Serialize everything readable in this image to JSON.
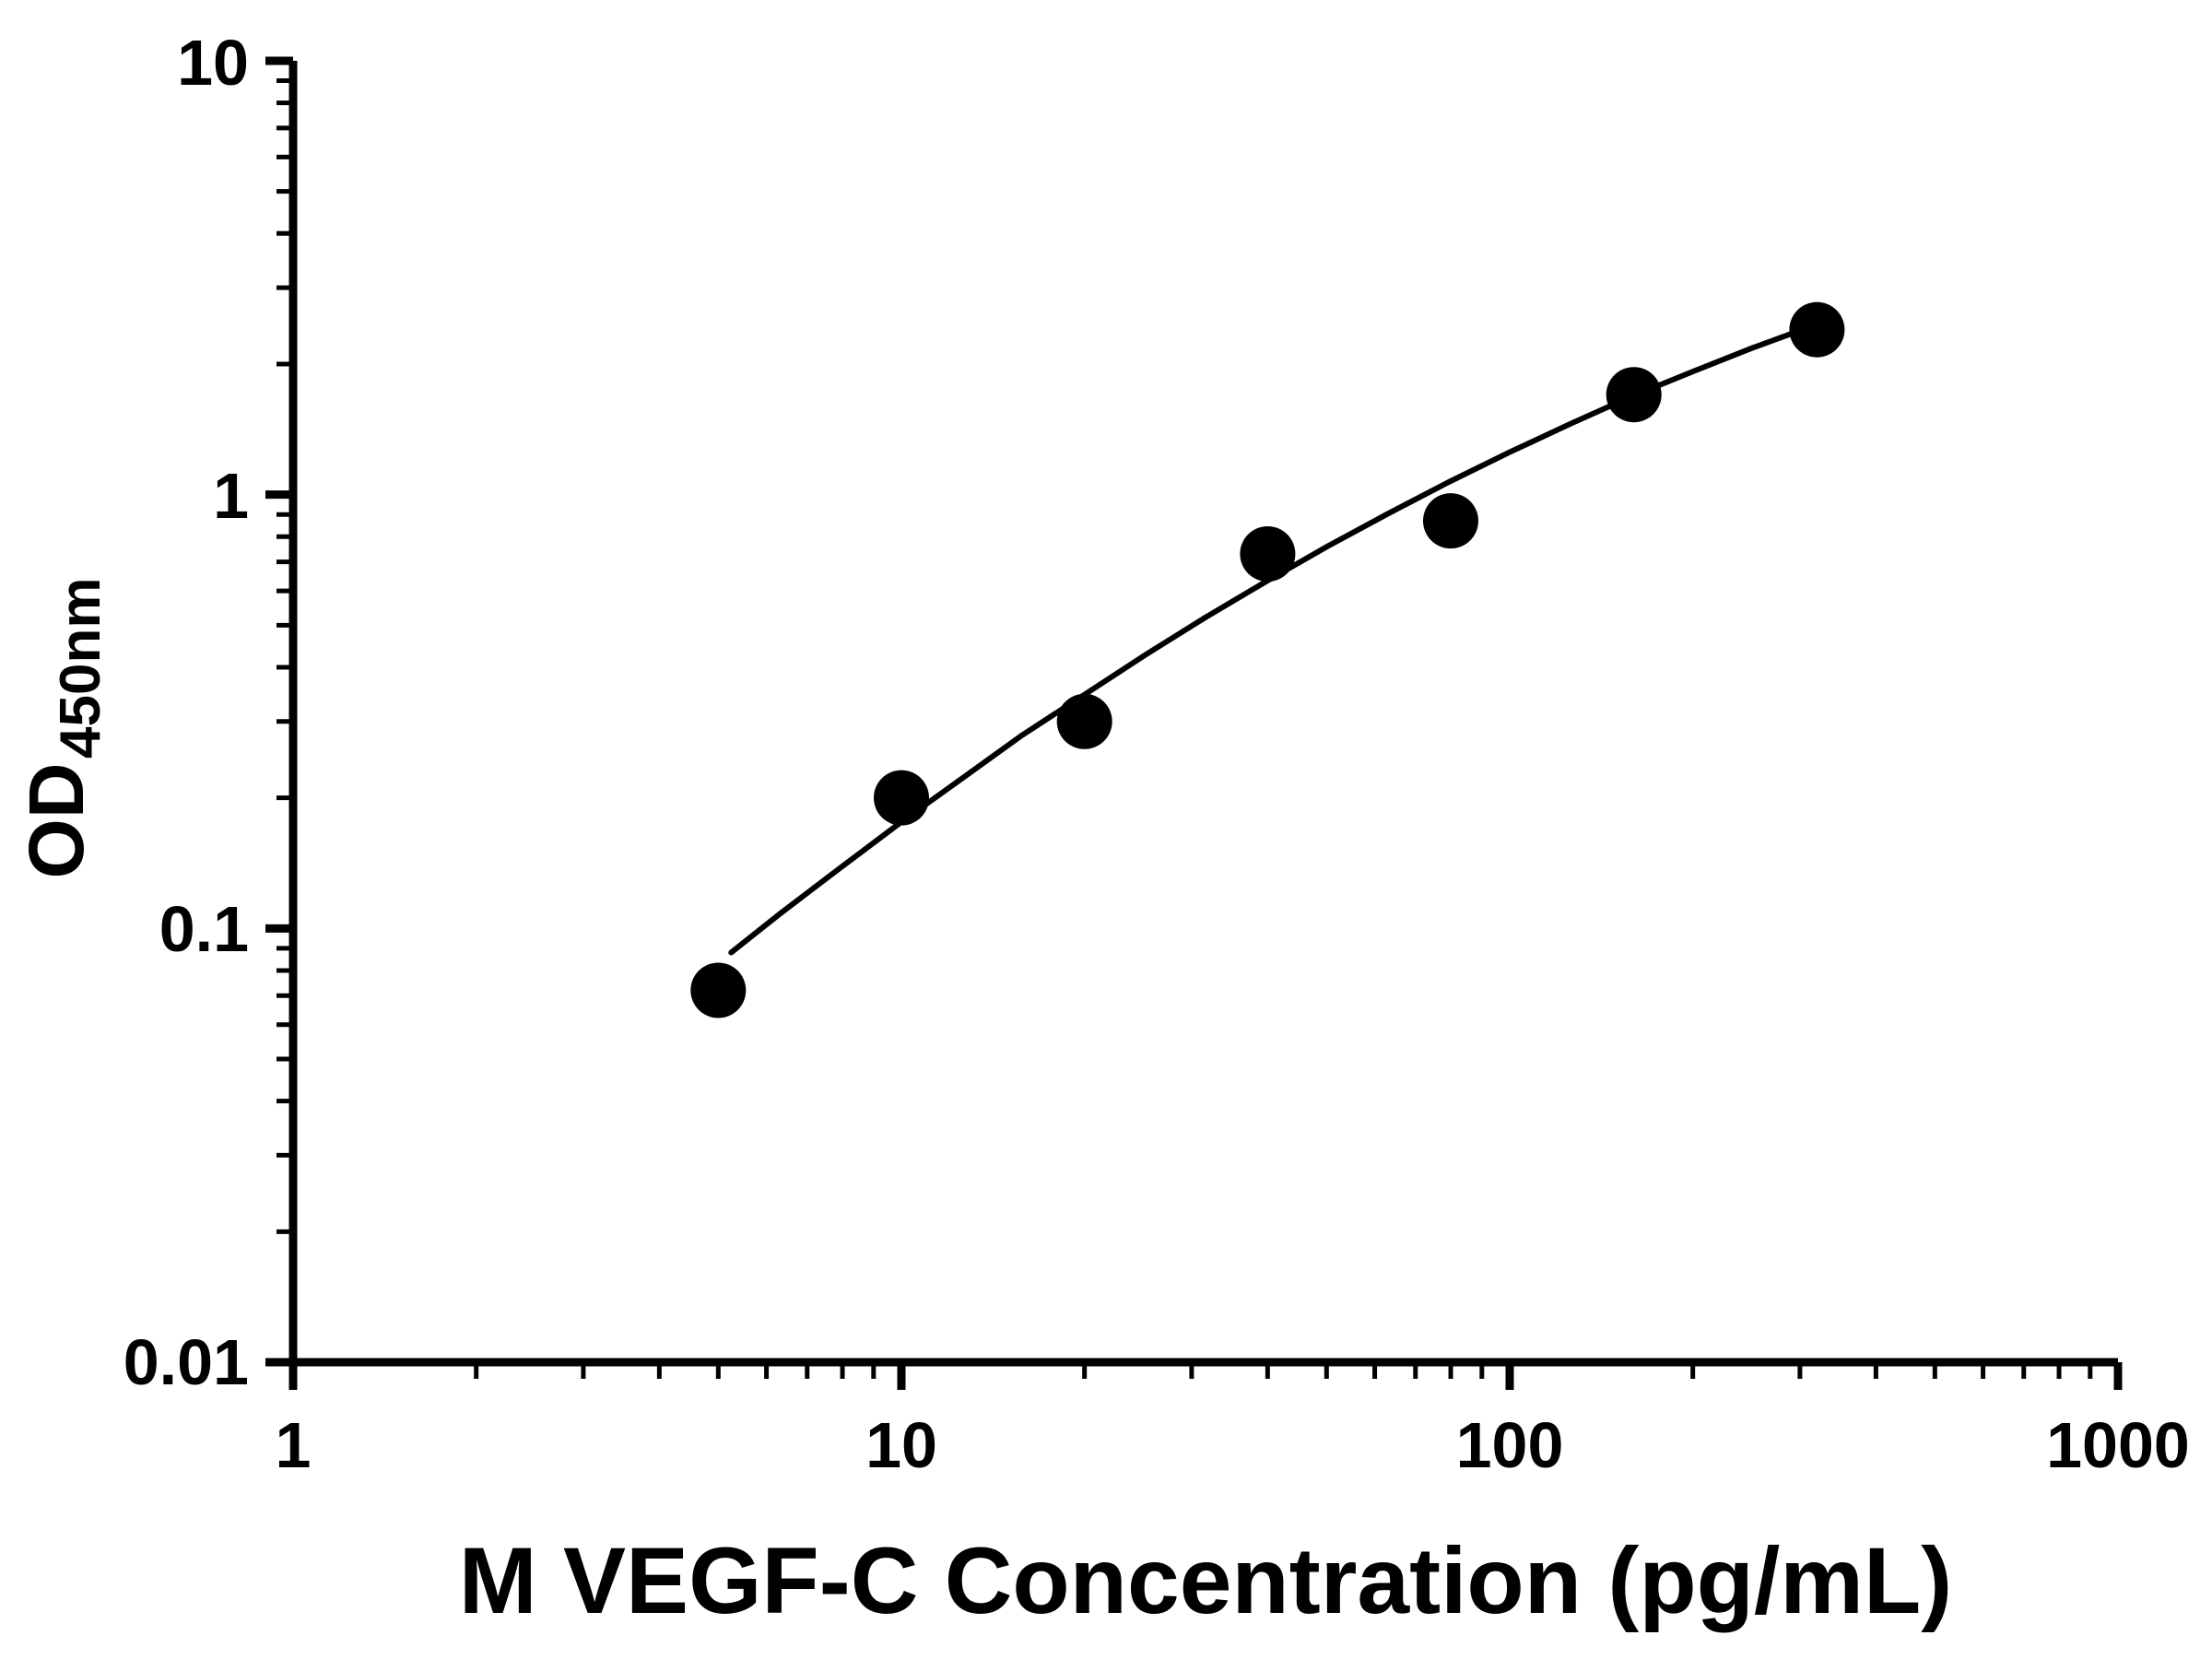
{
  "chart_data": {
    "type": "scatter",
    "title": "",
    "xlabel": "M VEGF-C Concentration (pg/mL)",
    "ylabel_main": "OD",
    "ylabel_sub": "450nm",
    "x_scale": "log",
    "y_scale": "log",
    "xlim": [
      1,
      1000
    ],
    "ylim": [
      0.01,
      10
    ],
    "x_ticks": [
      1,
      10,
      100,
      1000
    ],
    "x_tick_labels": [
      "1",
      "10",
      "100",
      "1000"
    ],
    "y_ticks": [
      0.01,
      0.1,
      1,
      10
    ],
    "y_tick_labels": [
      "0.01",
      "0.1",
      "1",
      "10"
    ],
    "minor_ticks": true,
    "grid": false,
    "legend": "none",
    "marker_color": "#000000",
    "line_color": "#000000",
    "axis_color": "#000000",
    "points": {
      "x": [
        5,
        10,
        20,
        40,
        80,
        160,
        320
      ],
      "y": [
        0.072,
        0.2,
        0.3,
        0.73,
        0.87,
        1.7,
        2.4
      ]
    },
    "fit_curve": {
      "x": [
        5.25,
        6.31,
        7.94,
        10,
        12.6,
        15.8,
        20,
        25.1,
        31.6,
        39.8,
        50.1,
        63.1,
        79.4,
        100,
        126,
        158,
        200,
        251,
        316
      ],
      "y": [
        0.088,
        0.108,
        0.138,
        0.176,
        0.222,
        0.279,
        0.346,
        0.426,
        0.521,
        0.631,
        0.759,
        0.904,
        1.069,
        1.253,
        1.457,
        1.68,
        1.922,
        2.181,
        2.454
      ]
    }
  }
}
